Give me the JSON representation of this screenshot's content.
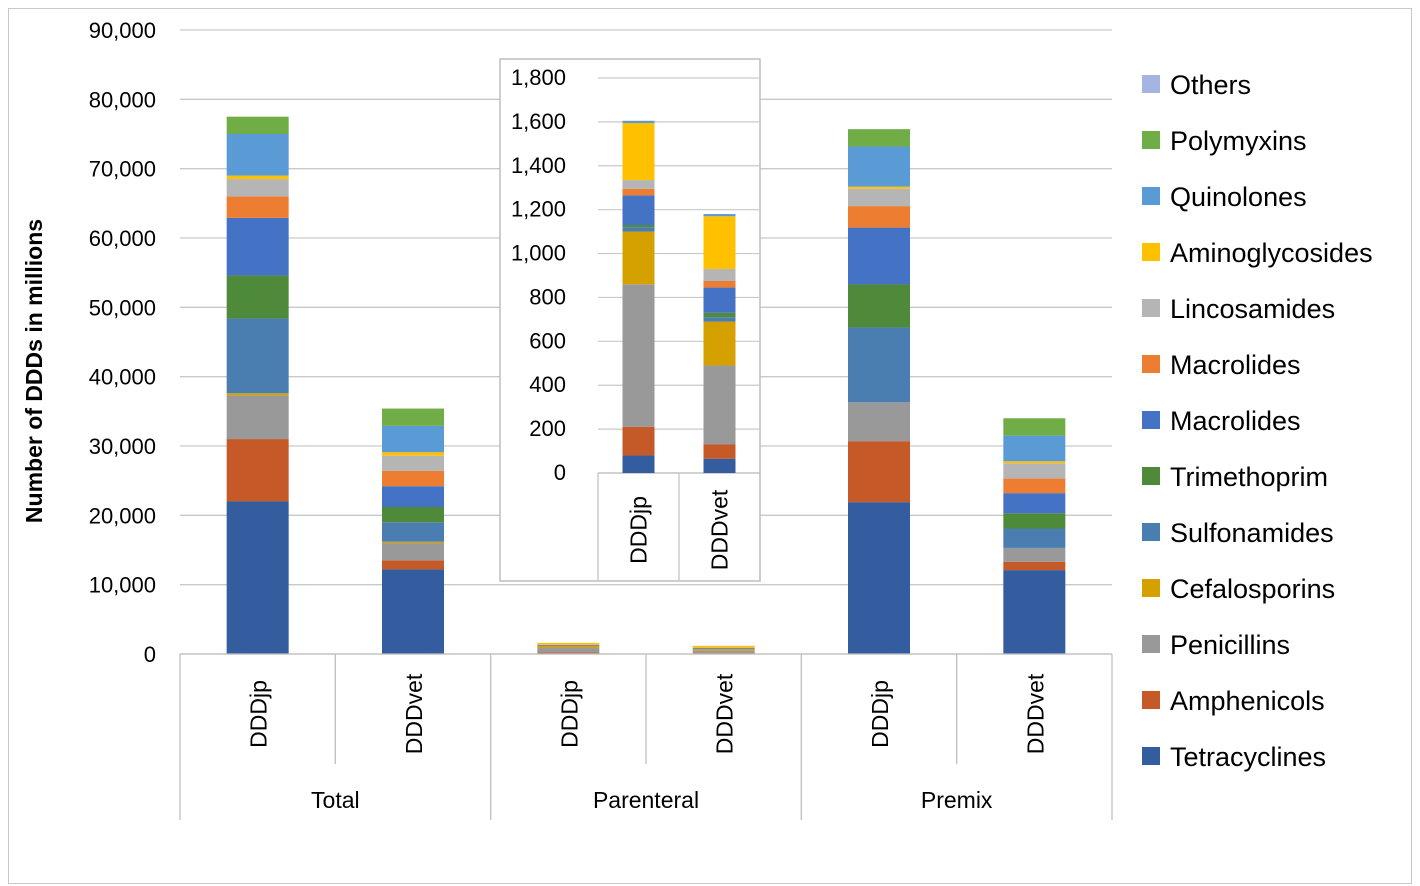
{
  "chart_data": {
    "type": "bar",
    "stacked": true,
    "ylabel": "Number of DDDs in millions",
    "ylim": [
      0,
      90000
    ],
    "yticks": [
      "0",
      "10,000",
      "20,000",
      "30,000",
      "40,000",
      "50,000",
      "60,000",
      "70,000",
      "80,000",
      "90,000"
    ],
    "groups": [
      "Total",
      "Parenteral",
      "Premix"
    ],
    "categories": [
      "DDDjp",
      "DDDvet",
      "DDDjp",
      "DDDvet",
      "DDDjp",
      "DDDvet"
    ],
    "legend_position": "right",
    "grid": true,
    "series": [
      {
        "name": "Tetracyclines",
        "color": "#345DA0",
        "values": [
          22000,
          12200,
          80,
          65,
          21900,
          12100
        ]
      },
      {
        "name": "Amphenicols",
        "color": "#C55A28",
        "values": [
          9000,
          1300,
          130,
          65,
          8800,
          1200
        ]
      },
      {
        "name": "Penicillins",
        "color": "#999999",
        "values": [
          6300,
          2500,
          650,
          360,
          5600,
          2000
        ]
      },
      {
        "name": "Cefalosporins",
        "color": "#D4A100",
        "values": [
          300,
          200,
          240,
          200,
          0,
          0
        ]
      },
      {
        "name": "Sulfonamides",
        "color": "#4A7EB0",
        "values": [
          10800,
          2800,
          20,
          20,
          10800,
          2800
        ]
      },
      {
        "name": "Trimethoprim",
        "color": "#4E8A3A",
        "values": [
          6200,
          2200,
          10,
          20,
          6200,
          2200
        ]
      },
      {
        "name": "Macrolides",
        "color": "#4472C4",
        "values": [
          8300,
          3000,
          135,
          115,
          8200,
          2900
        ]
      },
      {
        "name": "Macrolides",
        "color": "#ED7D31",
        "values": [
          3100,
          2200,
          30,
          30,
          3100,
          2100
        ]
      },
      {
        "name": "Lincosamides",
        "color": "#B5B5B5",
        "values": [
          2500,
          2200,
          40,
          55,
          2500,
          2200
        ]
      },
      {
        "name": "Aminoglycosides",
        "color": "#FFC000",
        "values": [
          500,
          500,
          260,
          240,
          300,
          300
        ]
      },
      {
        "name": "Quinolones",
        "color": "#5B9BD5",
        "values": [
          6000,
          3800,
          10,
          10,
          5800,
          3700
        ]
      },
      {
        "name": "Polymyxins",
        "color": "#70AD47",
        "values": [
          2500,
          2500,
          0,
          0,
          2500,
          2500
        ]
      },
      {
        "name": "Others",
        "color": "#A5B4E0",
        "values": [
          0,
          0,
          0,
          0,
          0,
          0
        ]
      }
    ],
    "inset": {
      "ylim": [
        0,
        1800
      ],
      "yticks": [
        "0",
        "200",
        "400",
        "600",
        "800",
        "1,000",
        "1,200",
        "1,400",
        "1,600",
        "1,800"
      ],
      "categories": [
        "DDDjp",
        "DDDvet"
      ]
    }
  }
}
